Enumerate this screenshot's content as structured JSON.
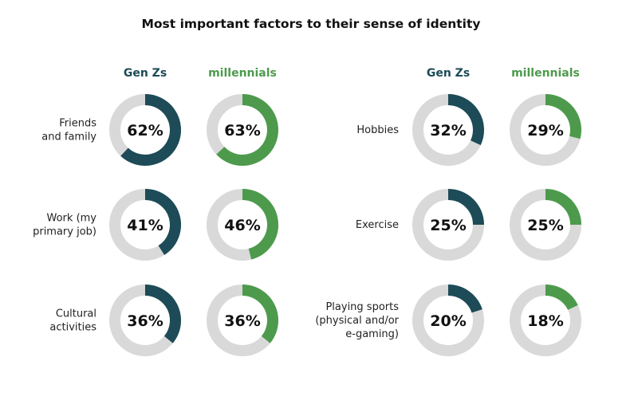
{
  "chart_data": {
    "type": "pie",
    "variant": "donut-grid",
    "title": "Most important factors to their sense of identity",
    "colors": {
      "Gen Zs": "#1d4b57",
      "millennials": "#4d9a4d",
      "track": "#d9d9d9"
    },
    "panels": [
      {
        "name": "left",
        "series": [
          "Gen Zs",
          "millennials"
        ],
        "rows": [
          {
            "label": [
              "Friends",
              "and family"
            ],
            "values": [
              62,
              63
            ]
          },
          {
            "label": [
              "Work (my",
              "primary job)"
            ],
            "values": [
              41,
              46
            ]
          },
          {
            "label": [
              "Cultural",
              "activities"
            ],
            "values": [
              36,
              36
            ]
          }
        ]
      },
      {
        "name": "right",
        "series": [
          "Gen Zs",
          "millennials"
        ],
        "rows": [
          {
            "label": [
              "Hobbies"
            ],
            "values": [
              32,
              29
            ]
          },
          {
            "label": [
              "Exercise"
            ],
            "values": [
              25,
              25
            ]
          },
          {
            "label": [
              "Playing sports",
              "(physical and/or",
              "e-gaming)"
            ],
            "values": [
              20,
              18
            ]
          }
        ]
      }
    ]
  }
}
